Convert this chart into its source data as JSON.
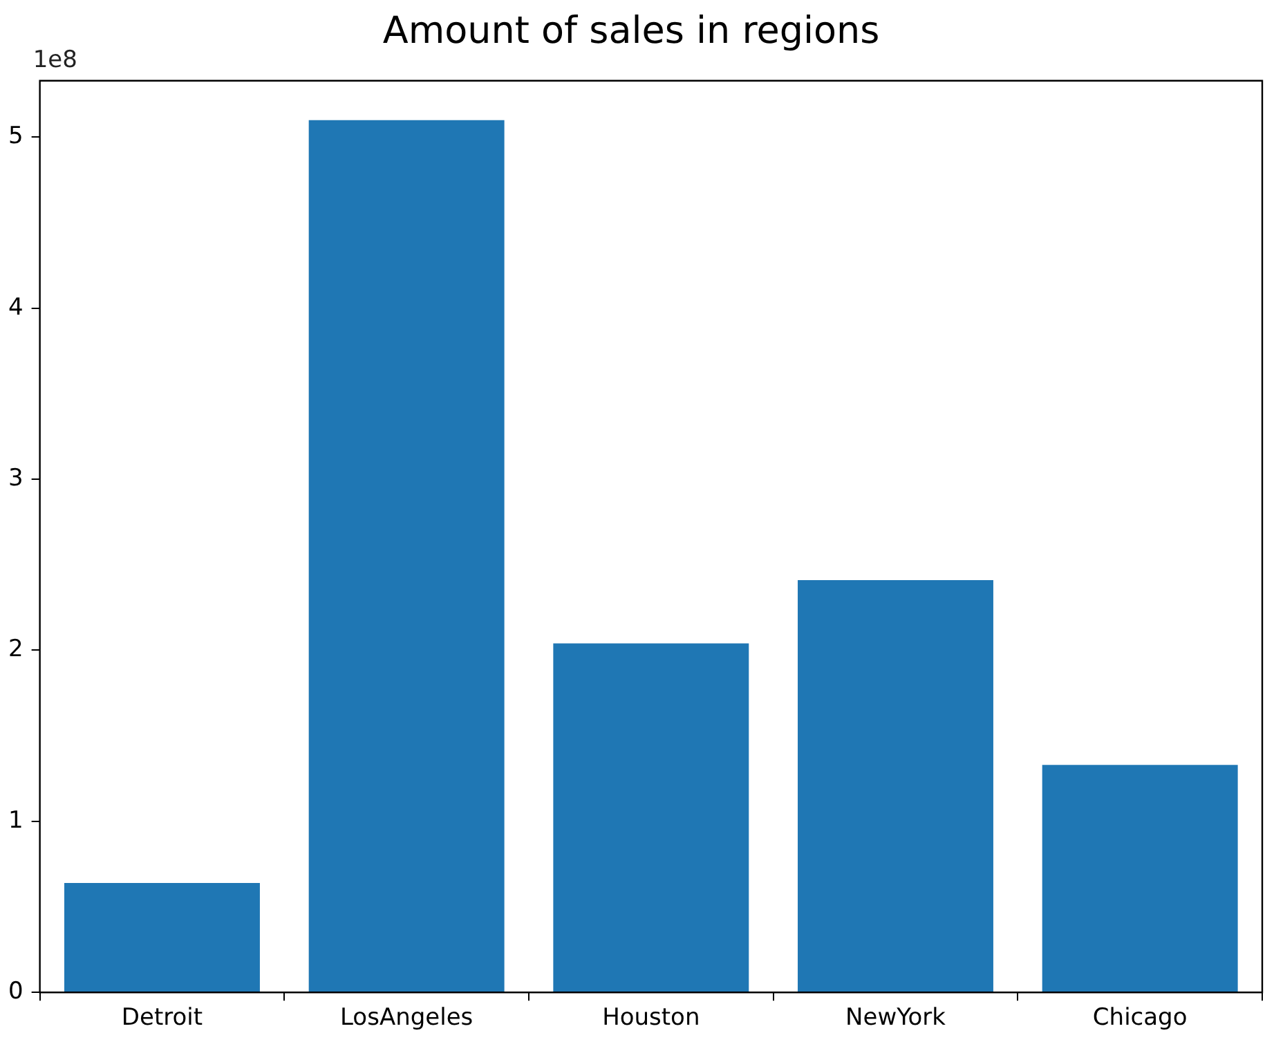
{
  "chart_data": {
    "type": "bar",
    "title": "Amount of sales in regions",
    "categories": [
      "Detroit",
      "LosAngeles",
      "Houston",
      "NewYork",
      "Chicago"
    ],
    "values": [
      0.64,
      5.1,
      2.04,
      2.41,
      1.33
    ],
    "color": "#1f77b4",
    "ylim": [
      0,
      5.33
    ],
    "yticks": [
      0,
      1,
      2,
      3,
      4,
      5
    ],
    "grid": false,
    "annotations": [
      "1e8"
    ]
  }
}
